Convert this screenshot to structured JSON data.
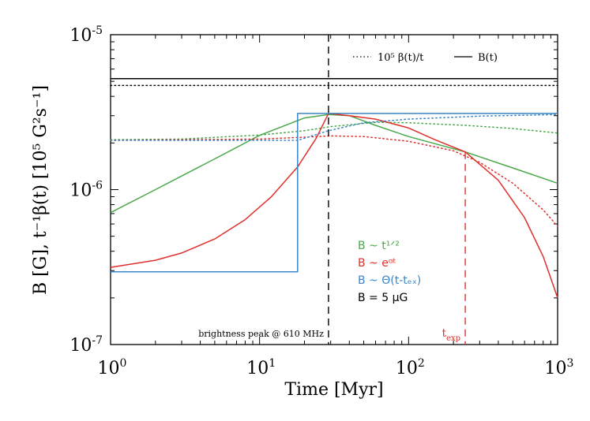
{
  "chart_data": {
    "type": "line",
    "xscale": "log",
    "yscale": "log",
    "xlim": [
      1,
      1000
    ],
    "ylim": [
      1e-07,
      1e-05
    ],
    "xlabel": "Time [Myr]",
    "ylabel": "B [G],  t⁻¹β(t) [10⁵ G²s⁻¹]",
    "xticks": [
      {
        "value": 1,
        "base": "10",
        "exp": "0"
      },
      {
        "value": 10,
        "base": "10",
        "exp": "1"
      },
      {
        "value": 100,
        "base": "10",
        "exp": "2"
      },
      {
        "value": 1000,
        "base": "10",
        "exp": "3"
      }
    ],
    "yticks": [
      {
        "value": 1e-07,
        "base": "10",
        "exp": "-7"
      },
      {
        "value": 1e-06,
        "base": "10",
        "exp": "-6"
      },
      {
        "value": 1e-05,
        "base": "10",
        "exp": "-5"
      }
    ],
    "legend": {
      "position": "top-right",
      "dotted": "10⁵ β(t)/t",
      "solid": "B(t)"
    },
    "model_labels": [
      {
        "text": "B ~ t¹ᐟ²",
        "color": "#4aa84a"
      },
      {
        "text": "B ~ eᵅᵗ",
        "color": "#e0302a"
      },
      {
        "text": "B ~ Θ(t-tₑₓ)",
        "color": "#3a86c8"
      },
      {
        "text": "B = 5 μG",
        "color": "#000000"
      }
    ],
    "annotations": {
      "peak_text": "brightness peak @ 610 MHz",
      "peak_x": 29,
      "texp_text": "t",
      "texp_sub": "exp",
      "texp_x": 240
    },
    "series": [
      {
        "name": "B ~ t^1/2",
        "color": "#4aa84a",
        "style": "solid",
        "x": [
          1,
          2,
          5,
          10,
          20,
          29,
          40,
          60,
          100,
          240,
          500,
          1000
        ],
        "y": [
          7.1e-07,
          1e-06,
          1.58e-06,
          2.24e-06,
          2.9e-06,
          3.05e-06,
          3e-06,
          2.6e-06,
          2.2e-06,
          1.75e-06,
          1.38e-06,
          1.1e-06
        ]
      },
      {
        "name": "B ~ t^1/2",
        "color": "#4aa84a",
        "style": "dotted",
        "x": [
          1,
          3,
          10,
          20,
          30,
          60,
          100,
          240,
          500,
          1000
        ],
        "y": [
          2.1e-06,
          2.12e-06,
          2.25e-06,
          2.4e-06,
          2.55e-06,
          2.72e-06,
          2.7e-06,
          2.6e-06,
          2.48e-06,
          2.32e-06
        ]
      },
      {
        "name": "B ~ e^αt",
        "color": "#e0302a",
        "style": "solid",
        "x": [
          1,
          2,
          3,
          5,
          8,
          12,
          18,
          24,
          29,
          40,
          60,
          100,
          150,
          240,
          400,
          600,
          800,
          1000
        ],
        "y": [
          3.15e-07,
          3.5e-07,
          3.9e-07,
          4.8e-07,
          6.4e-07,
          9e-07,
          1.4e-06,
          2.15e-06,
          3.1e-06,
          3e-06,
          2.85e-06,
          2.5e-06,
          2.1e-06,
          1.75e-06,
          1.15e-06,
          6.6e-07,
          3.7e-07,
          2e-07
        ]
      },
      {
        "name": "B ~ e^αt",
        "color": "#e0302a",
        "style": "dotted",
        "x": [
          1,
          3,
          10,
          20,
          30,
          50,
          100,
          200,
          300,
          500,
          800,
          1000
        ],
        "y": [
          2.08e-06,
          2.1e-06,
          2.12e-06,
          2.18e-06,
          2.22e-06,
          2.2e-06,
          2.05e-06,
          1.78e-06,
          1.5e-06,
          1.1e-06,
          7.4e-07,
          5.8e-07
        ]
      },
      {
        "name": "B ~ Θ(t-t_eq)",
        "color": "#3a86c8",
        "style": "solid",
        "x": [
          1,
          18,
          18,
          29,
          100,
          1000
        ],
        "y": [
          2.95e-07,
          2.95e-07,
          3.1e-06,
          3.1e-06,
          3.1e-06,
          3.1e-06
        ]
      },
      {
        "name": "B ~ Θ(t-t_eq)",
        "color": "#3a86c8",
        "style": "dotted",
        "x": [
          1,
          5,
          10,
          18,
          29,
          50,
          100,
          300,
          1000
        ],
        "y": [
          2.08e-06,
          2.08e-06,
          2.08e-06,
          2.08e-06,
          2.4e-06,
          2.7e-06,
          2.85e-06,
          2.98e-06,
          3.05e-06
        ]
      },
      {
        "name": "B = 5 μG",
        "color": "#000000",
        "style": "solid",
        "x": [
          1,
          1000
        ],
        "y": [
          5.2e-06,
          5.2e-06
        ]
      },
      {
        "name": "B = 5 μG",
        "color": "#000000",
        "style": "dotted",
        "x": [
          1,
          1000
        ],
        "y": [
          4.7e-06,
          4.7e-06
        ]
      }
    ]
  }
}
